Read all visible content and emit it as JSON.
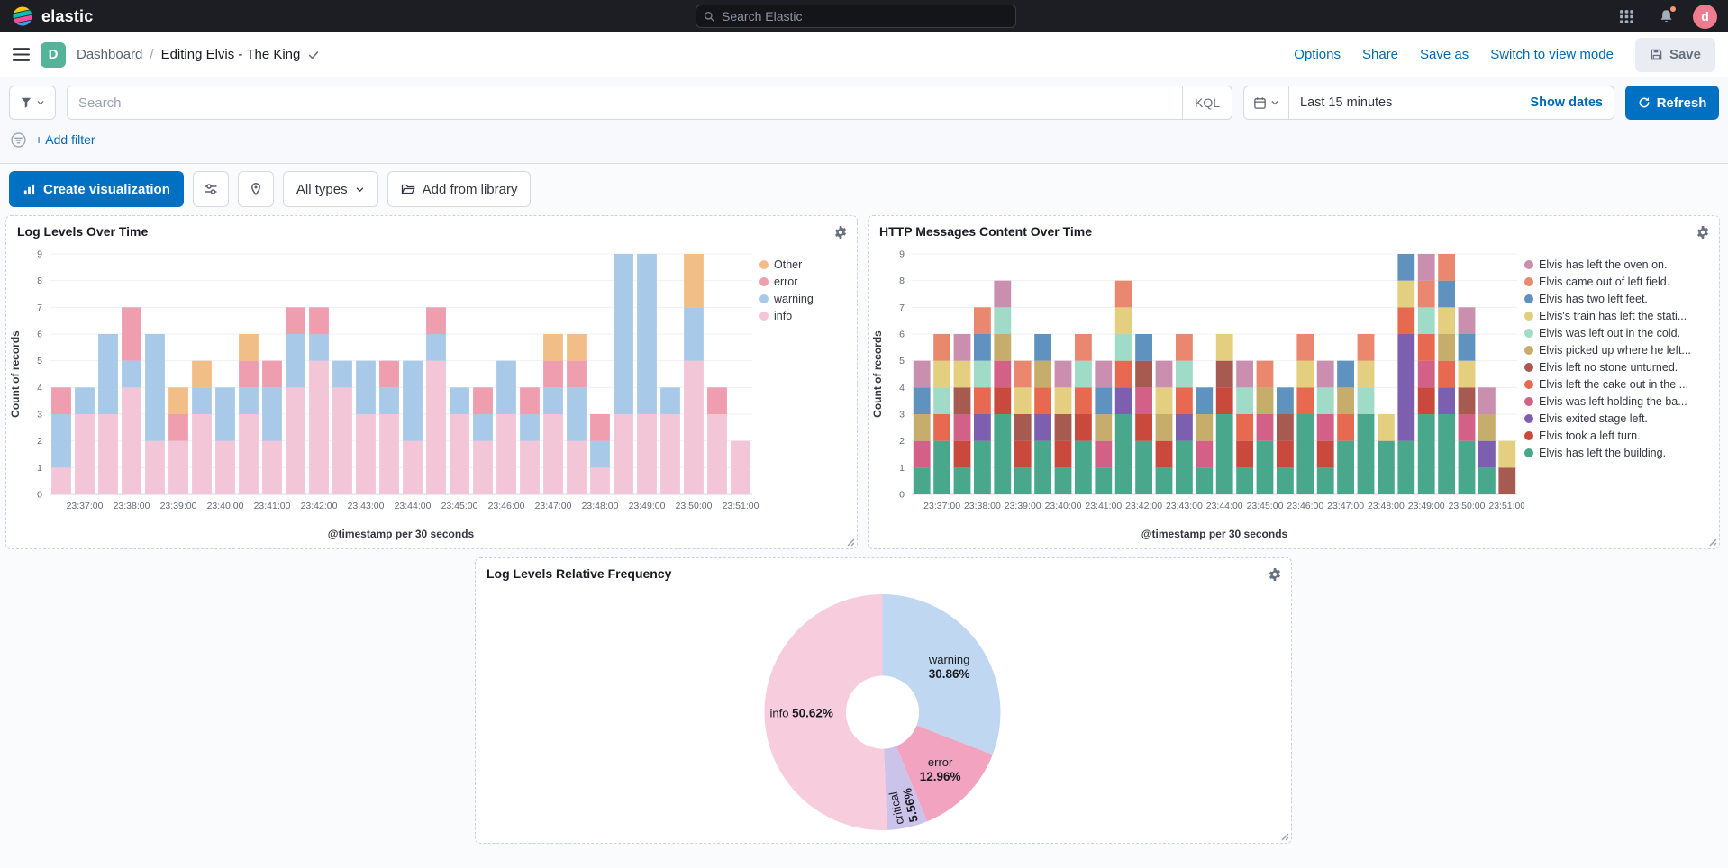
{
  "header": {
    "brand": "elastic",
    "search_placeholder": "Search Elastic",
    "avatar_initial": "d"
  },
  "nav": {
    "space_initial": "D",
    "breadcrumb_root": "Dashboard",
    "breadcrumb_sep": "/",
    "breadcrumb_current": "Editing Elvis - The King",
    "links": {
      "options": "Options",
      "share": "Share",
      "save_as": "Save as",
      "switch_view": "Switch to view mode",
      "save": "Save"
    }
  },
  "query_bar": {
    "search_placeholder": "Search",
    "language": "KQL",
    "time_range": "Last 15 minutes",
    "show_dates": "Show dates",
    "refresh": "Refresh",
    "add_filter": "+ Add filter"
  },
  "toolbar": {
    "create_visualization": "Create visualization",
    "all_types": "All types",
    "add_from_library": "Add from library"
  },
  "colors": {
    "primary": "#0071C2",
    "link": "#006BB4",
    "header_bg": "#1D1E24",
    "panel_border": "#C9D2E0"
  },
  "chart_data": [
    {
      "type": "bar",
      "stacked": true,
      "title": "Log Levels Over Time",
      "xlabel": "@timestamp per 30 seconds",
      "ylabel": "Count of records",
      "ylim": [
        0,
        9
      ],
      "grid": true,
      "legend_position": "right",
      "categories": [
        "23:36:30",
        "23:37:00",
        "23:37:30",
        "23:38:00",
        "23:38:30",
        "23:39:00",
        "23:39:30",
        "23:40:00",
        "23:40:30",
        "23:41:00",
        "23:41:30",
        "23:42:00",
        "23:42:30",
        "23:43:00",
        "23:43:30",
        "23:44:00",
        "23:44:30",
        "23:45:00",
        "23:45:30",
        "23:46:00",
        "23:46:30",
        "23:47:00",
        "23:47:30",
        "23:48:00",
        "23:48:30",
        "23:49:00",
        "23:49:30",
        "23:50:00",
        "23:50:30",
        "23:51:00"
      ],
      "series": [
        {
          "name": "Other",
          "color": "#F2BE88",
          "values": [
            0,
            0,
            0,
            0,
            0,
            1,
            1,
            0,
            1,
            0,
            0,
            0,
            0,
            0,
            0,
            0,
            0,
            0,
            0,
            0,
            0,
            1,
            1,
            0,
            0,
            0,
            0,
            2,
            0,
            0
          ]
        },
        {
          "name": "error",
          "color": "#EE9EAE",
          "values": [
            1,
            0,
            0,
            2,
            0,
            1,
            0,
            0,
            1,
            1,
            1,
            1,
            0,
            0,
            1,
            0,
            1,
            0,
            1,
            0,
            1,
            1,
            1,
            1,
            0,
            0,
            0,
            0,
            1,
            0
          ]
        },
        {
          "name": "warning",
          "color": "#A9C9E8",
          "values": [
            2,
            1,
            3,
            1,
            4,
            0,
            1,
            2,
            1,
            2,
            2,
            1,
            1,
            2,
            1,
            3,
            1,
            1,
            1,
            2,
            1,
            1,
            2,
            1,
            6,
            6,
            1,
            2,
            0,
            0
          ]
        },
        {
          "name": "info",
          "color": "#F3C6D7",
          "values": [
            1,
            3,
            3,
            4,
            2,
            2,
            3,
            2,
            3,
            2,
            4,
            5,
            4,
            3,
            3,
            2,
            5,
            3,
            2,
            3,
            2,
            3,
            2,
            1,
            3,
            3,
            3,
            5,
            3,
            2
          ]
        }
      ]
    },
    {
      "type": "bar",
      "stacked": true,
      "title": "HTTP Messages Content Over Time",
      "xlabel": "@timestamp per 30 seconds",
      "ylabel": "Count of records",
      "ylim": [
        0,
        9
      ],
      "grid": true,
      "legend_position": "right",
      "categories": [
        "23:36:30",
        "23:37:00",
        "23:37:30",
        "23:38:00",
        "23:38:30",
        "23:39:00",
        "23:39:30",
        "23:40:00",
        "23:40:30",
        "23:41:00",
        "23:41:30",
        "23:42:00",
        "23:42:30",
        "23:43:00",
        "23:43:30",
        "23:44:00",
        "23:44:30",
        "23:45:00",
        "23:45:30",
        "23:46:00",
        "23:46:30",
        "23:47:00",
        "23:47:30",
        "23:48:00",
        "23:48:30",
        "23:49:00",
        "23:49:30",
        "23:50:00",
        "23:50:30",
        "23:51:00"
      ],
      "series": [
        {
          "name": "Elvis has left the oven on.",
          "color": "#CA8EAE",
          "values": [
            1,
            0,
            1,
            0,
            1,
            0,
            0,
            1,
            0,
            1,
            0,
            0,
            1,
            0,
            0,
            0,
            1,
            0,
            0,
            0,
            1,
            0,
            0,
            0,
            0,
            1,
            0,
            1,
            1,
            0
          ]
        },
        {
          "name": "Elvis came out of left field.",
          "color": "#E9876F",
          "values": [
            0,
            1,
            0,
            1,
            0,
            1,
            0,
            0,
            1,
            0,
            1,
            0,
            0,
            1,
            0,
            0,
            0,
            1,
            0,
            1,
            0,
            0,
            1,
            0,
            0,
            1,
            1,
            0,
            0,
            0
          ]
        },
        {
          "name": "Elvis has two left feet.",
          "color": "#6092C0",
          "values": [
            1,
            0,
            0,
            1,
            0,
            0,
            1,
            0,
            0,
            1,
            0,
            1,
            0,
            0,
            1,
            0,
            0,
            0,
            1,
            0,
            0,
            1,
            0,
            0,
            1,
            0,
            1,
            1,
            0,
            0
          ]
        },
        {
          "name": "Elvis's train has left the stati...",
          "color": "#E4CE7F",
          "values": [
            0,
            1,
            1,
            0,
            0,
            1,
            0,
            1,
            0,
            0,
            1,
            0,
            1,
            0,
            0,
            1,
            0,
            0,
            0,
            1,
            0,
            0,
            1,
            1,
            1,
            0,
            1,
            1,
            0,
            1
          ]
        },
        {
          "name": "Elvis was left out in the cold.",
          "color": "#9FDBC6",
          "values": [
            0,
            1,
            0,
            1,
            1,
            0,
            0,
            0,
            1,
            0,
            1,
            0,
            0,
            1,
            0,
            0,
            1,
            0,
            0,
            0,
            1,
            0,
            1,
            0,
            0,
            1,
            0,
            0,
            0,
            0
          ]
        },
        {
          "name": "Elvis picked up where he left...",
          "color": "#C7AD6C",
          "values": [
            1,
            0,
            0,
            0,
            1,
            0,
            1,
            0,
            0,
            1,
            0,
            0,
            1,
            0,
            1,
            0,
            0,
            1,
            0,
            0,
            0,
            1,
            0,
            0,
            0,
            0,
            1,
            0,
            1,
            0
          ]
        },
        {
          "name": "Elvis left no stone unturned.",
          "color": "#A65A50",
          "values": [
            0,
            0,
            1,
            0,
            0,
            1,
            0,
            1,
            0,
            0,
            0,
            1,
            0,
            0,
            0,
            1,
            0,
            0,
            1,
            0,
            0,
            0,
            0,
            0,
            0,
            0,
            0,
            1,
            0,
            1
          ]
        },
        {
          "name": "Elvis left the cake out in the ...",
          "color": "#E76A50",
          "values": [
            0,
            1,
            0,
            1,
            0,
            0,
            1,
            0,
            1,
            0,
            1,
            0,
            0,
            1,
            0,
            0,
            1,
            0,
            0,
            1,
            0,
            1,
            0,
            0,
            1,
            1,
            1,
            0,
            0,
            0
          ]
        },
        {
          "name": "Elvis was left holding the ba...",
          "color": "#D36086",
          "values": [
            1,
            0,
            1,
            0,
            1,
            0,
            0,
            0,
            0,
            1,
            0,
            1,
            0,
            0,
            1,
            0,
            0,
            1,
            0,
            0,
            1,
            0,
            0,
            0,
            0,
            1,
            0,
            1,
            0,
            0
          ]
        },
        {
          "name": "Elvis exited stage left.",
          "color": "#7C5FAE",
          "values": [
            0,
            0,
            0,
            1,
            0,
            0,
            1,
            0,
            0,
            0,
            1,
            0,
            0,
            1,
            0,
            0,
            0,
            0,
            0,
            0,
            0,
            0,
            0,
            0,
            4,
            0,
            1,
            0,
            1,
            0
          ]
        },
        {
          "name": "Elvis took a left turn.",
          "color": "#C94A3D",
          "values": [
            0,
            0,
            1,
            0,
            1,
            1,
            0,
            1,
            1,
            0,
            0,
            1,
            1,
            0,
            0,
            1,
            1,
            0,
            1,
            0,
            1,
            0,
            0,
            0,
            0,
            1,
            0,
            0,
            0,
            0
          ]
        },
        {
          "name": "Elvis has left the building.",
          "color": "#49A88C",
          "values": [
            1,
            2,
            1,
            2,
            3,
            1,
            2,
            1,
            2,
            1,
            3,
            2,
            1,
            2,
            1,
            3,
            1,
            2,
            1,
            3,
            1,
            2,
            3,
            2,
            2,
            3,
            3,
            2,
            1,
            0
          ]
        }
      ]
    },
    {
      "type": "pie",
      "donut": true,
      "title": "Log Levels Relative Frequency",
      "inner_radius_ratio": 0.31,
      "slices": [
        {
          "name": "warning",
          "pct": 30.86,
          "value_label": "30.86%",
          "color": "#BFD7F1",
          "layout": "two-line"
        },
        {
          "name": "error",
          "pct": 12.96,
          "value_label": "12.96%",
          "color": "#F2A3BF",
          "layout": "two-line"
        },
        {
          "name": "critical",
          "pct": 5.56,
          "value_label": "5.56%",
          "color": "#CBC3E9",
          "layout": "rotated"
        },
        {
          "name": "info",
          "pct": 50.62,
          "value_label": "50.62%",
          "color": "#F7CCDD",
          "layout": "inline"
        }
      ]
    }
  ]
}
